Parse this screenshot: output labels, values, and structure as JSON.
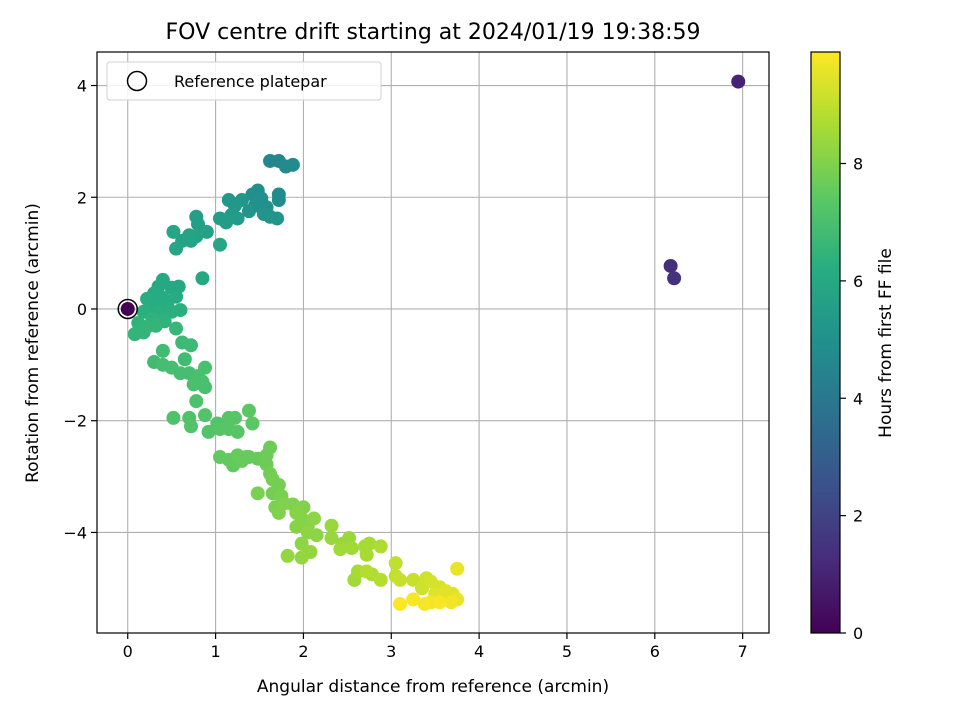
{
  "chart_data": {
    "type": "scatter",
    "title": "FOV centre drift starting at 2024/01/19 19:38:59",
    "xlabel": "Angular distance from reference (arcmin)",
    "ylabel": "Rotation from reference (arcmin)",
    "xlim": [
      -0.35,
      7.3
    ],
    "ylim": [
      -5.8,
      4.6
    ],
    "xticks": [
      0,
      1,
      2,
      3,
      4,
      5,
      6,
      7
    ],
    "yticks": [
      -4,
      -2,
      0,
      2,
      4
    ],
    "xtick_labels": [
      "0",
      "1",
      "2",
      "3",
      "4",
      "5",
      "6",
      "7"
    ],
    "ytick_labels": [
      "−4",
      "−2",
      "0",
      "2",
      "4"
    ],
    "grid": true,
    "legend": {
      "placement": "upper-left",
      "entries": [
        "Reference platepar"
      ]
    },
    "reference_point": {
      "x": 0,
      "y": 0
    },
    "colorbar": {
      "label": "Hours from first FF file",
      "colormap": "viridis",
      "range": [
        0,
        9.9
      ],
      "ticks": [
        0,
        2,
        4,
        6,
        8
      ],
      "tick_labels": [
        "0",
        "2",
        "4",
        "6",
        "8"
      ]
    },
    "points": [
      {
        "x": 6.95,
        "y": 4.07,
        "h": 1.0
      },
      {
        "x": 6.18,
        "y": 0.77,
        "h": 1.3
      },
      {
        "x": 6.22,
        "y": 0.55,
        "h": 1.4
      },
      {
        "x": 1.62,
        "y": 2.65,
        "h": 4.6
      },
      {
        "x": 1.72,
        "y": 2.65,
        "h": 4.6
      },
      {
        "x": 1.8,
        "y": 2.55,
        "h": 4.7
      },
      {
        "x": 1.88,
        "y": 2.58,
        "h": 4.7
      },
      {
        "x": 1.72,
        "y": 2.05,
        "h": 4.8
      },
      {
        "x": 1.72,
        "y": 1.95,
        "h": 4.8
      },
      {
        "x": 1.48,
        "y": 2.12,
        "h": 4.9
      },
      {
        "x": 1.42,
        "y": 2.05,
        "h": 4.9
      },
      {
        "x": 1.52,
        "y": 1.98,
        "h": 5.0
      },
      {
        "x": 1.45,
        "y": 1.85,
        "h": 5.0
      },
      {
        "x": 1.58,
        "y": 1.82,
        "h": 5.0
      },
      {
        "x": 1.38,
        "y": 1.75,
        "h": 5.1
      },
      {
        "x": 1.55,
        "y": 1.7,
        "h": 5.1
      },
      {
        "x": 1.62,
        "y": 1.65,
        "h": 5.1
      },
      {
        "x": 1.7,
        "y": 1.62,
        "h": 5.2
      },
      {
        "x": 1.5,
        "y": 1.92,
        "h": 5.0
      },
      {
        "x": 1.3,
        "y": 1.95,
        "h": 5.2
      },
      {
        "x": 1.22,
        "y": 1.85,
        "h": 5.3
      },
      {
        "x": 1.15,
        "y": 1.95,
        "h": 5.3
      },
      {
        "x": 1.18,
        "y": 1.68,
        "h": 5.4
      },
      {
        "x": 1.25,
        "y": 1.62,
        "h": 5.4
      },
      {
        "x": 1.05,
        "y": 1.62,
        "h": 5.5
      },
      {
        "x": 1.12,
        "y": 1.55,
        "h": 5.5
      },
      {
        "x": 0.78,
        "y": 1.65,
        "h": 5.6
      },
      {
        "x": 0.8,
        "y": 1.52,
        "h": 5.6
      },
      {
        "x": 0.9,
        "y": 1.38,
        "h": 5.7
      },
      {
        "x": 0.78,
        "y": 1.3,
        "h": 5.7
      },
      {
        "x": 0.7,
        "y": 1.32,
        "h": 5.8
      },
      {
        "x": 0.72,
        "y": 1.22,
        "h": 5.8
      },
      {
        "x": 0.62,
        "y": 1.22,
        "h": 5.8
      },
      {
        "x": 0.52,
        "y": 1.38,
        "h": 5.9
      },
      {
        "x": 0.55,
        "y": 1.08,
        "h": 5.9
      },
      {
        "x": 1.05,
        "y": 1.15,
        "h": 5.9
      },
      {
        "x": 0.4,
        "y": 0.52,
        "h": 6.0
      },
      {
        "x": 0.35,
        "y": 0.4,
        "h": 6.0
      },
      {
        "x": 0.5,
        "y": 0.38,
        "h": 6.0
      },
      {
        "x": 0.58,
        "y": 0.4,
        "h": 6.0
      },
      {
        "x": 0.3,
        "y": 0.28,
        "h": 6.1
      },
      {
        "x": 0.4,
        "y": 0.2,
        "h": 6.1
      },
      {
        "x": 0.55,
        "y": 0.22,
        "h": 6.1
      },
      {
        "x": 0.45,
        "y": 0.08,
        "h": 6.2
      },
      {
        "x": 0.3,
        "y": 0.05,
        "h": 6.2
      },
      {
        "x": 0.22,
        "y": 0.18,
        "h": 6.2
      },
      {
        "x": 0.18,
        "y": -0.05,
        "h": 6.3
      },
      {
        "x": 0.35,
        "y": -0.05,
        "h": 6.3
      },
      {
        "x": 0.5,
        "y": -0.05,
        "h": 6.3
      },
      {
        "x": 0.6,
        "y": -0.02,
        "h": 6.3
      },
      {
        "x": 0.28,
        "y": -0.18,
        "h": 6.4
      },
      {
        "x": 0.42,
        "y": -0.22,
        "h": 6.4
      },
      {
        "x": 0.12,
        "y": -0.25,
        "h": 6.4
      },
      {
        "x": 0.22,
        "y": -0.32,
        "h": 6.5
      },
      {
        "x": 0.32,
        "y": -0.3,
        "h": 6.5
      },
      {
        "x": 0.08,
        "y": -0.45,
        "h": 6.5
      },
      {
        "x": 0.18,
        "y": -0.42,
        "h": 6.5
      },
      {
        "x": 0.55,
        "y": -0.35,
        "h": 6.6
      },
      {
        "x": 0.85,
        "y": 0.55,
        "h": 6.0
      },
      {
        "x": 0.62,
        "y": -0.6,
        "h": 6.7
      },
      {
        "x": 0.72,
        "y": -0.65,
        "h": 6.7
      },
      {
        "x": 0.4,
        "y": -0.75,
        "h": 6.8
      },
      {
        "x": 0.65,
        "y": -0.9,
        "h": 6.8
      },
      {
        "x": 0.3,
        "y": -0.95,
        "h": 6.8
      },
      {
        "x": 0.4,
        "y": -1.0,
        "h": 6.9
      },
      {
        "x": 0.5,
        "y": -1.05,
        "h": 6.9
      },
      {
        "x": 0.6,
        "y": -1.15,
        "h": 6.9
      },
      {
        "x": 0.7,
        "y": -1.15,
        "h": 6.9
      },
      {
        "x": 0.8,
        "y": -1.2,
        "h": 7.0
      },
      {
        "x": 0.88,
        "y": -1.05,
        "h": 7.0
      },
      {
        "x": 0.85,
        "y": -1.3,
        "h": 7.0
      },
      {
        "x": 0.75,
        "y": -1.35,
        "h": 7.0
      },
      {
        "x": 0.88,
        "y": -1.4,
        "h": 7.0
      },
      {
        "x": 0.78,
        "y": -1.65,
        "h": 7.1
      },
      {
        "x": 0.52,
        "y": -1.95,
        "h": 7.1
      },
      {
        "x": 0.7,
        "y": -1.95,
        "h": 7.1
      },
      {
        "x": 0.72,
        "y": -2.1,
        "h": 7.2
      },
      {
        "x": 0.88,
        "y": -1.9,
        "h": 7.2
      },
      {
        "x": 0.92,
        "y": -2.2,
        "h": 7.2
      },
      {
        "x": 1.02,
        "y": -2.05,
        "h": 7.2
      },
      {
        "x": 1.05,
        "y": -2.15,
        "h": 7.3
      },
      {
        "x": 1.15,
        "y": -1.95,
        "h": 7.3
      },
      {
        "x": 1.22,
        "y": -1.95,
        "h": 7.3
      },
      {
        "x": 1.15,
        "y": -2.15,
        "h": 7.3
      },
      {
        "x": 1.25,
        "y": -2.2,
        "h": 7.3
      },
      {
        "x": 1.38,
        "y": -1.82,
        "h": 7.4
      },
      {
        "x": 1.42,
        "y": -2.05,
        "h": 7.4
      },
      {
        "x": 1.05,
        "y": -2.65,
        "h": 7.5
      },
      {
        "x": 1.15,
        "y": -2.7,
        "h": 7.5
      },
      {
        "x": 1.2,
        "y": -2.8,
        "h": 7.5
      },
      {
        "x": 1.25,
        "y": -2.62,
        "h": 7.6
      },
      {
        "x": 1.3,
        "y": -2.72,
        "h": 7.6
      },
      {
        "x": 1.38,
        "y": -2.65,
        "h": 7.6
      },
      {
        "x": 1.48,
        "y": -2.68,
        "h": 7.6
      },
      {
        "x": 1.58,
        "y": -2.62,
        "h": 7.7
      },
      {
        "x": 1.62,
        "y": -2.48,
        "h": 7.7
      },
      {
        "x": 1.58,
        "y": -2.78,
        "h": 7.7
      },
      {
        "x": 1.35,
        "y": -2.65,
        "h": 7.6
      },
      {
        "x": 1.62,
        "y": -2.95,
        "h": 7.8
      },
      {
        "x": 1.65,
        "y": -3.05,
        "h": 7.8
      },
      {
        "x": 1.72,
        "y": -3.15,
        "h": 7.8
      },
      {
        "x": 1.65,
        "y": -3.3,
        "h": 7.8
      },
      {
        "x": 1.75,
        "y": -3.35,
        "h": 7.9
      },
      {
        "x": 1.48,
        "y": -3.3,
        "h": 7.9
      },
      {
        "x": 1.68,
        "y": -3.55,
        "h": 7.9
      },
      {
        "x": 1.72,
        "y": -3.65,
        "h": 8.0
      },
      {
        "x": 1.78,
        "y": -3.48,
        "h": 8.0
      },
      {
        "x": 1.88,
        "y": -3.5,
        "h": 8.0
      },
      {
        "x": 2.0,
        "y": -3.55,
        "h": 8.0
      },
      {
        "x": 1.92,
        "y": -3.65,
        "h": 8.1
      },
      {
        "x": 1.98,
        "y": -3.75,
        "h": 8.1
      },
      {
        "x": 1.92,
        "y": -3.9,
        "h": 8.1
      },
      {
        "x": 2.05,
        "y": -3.88,
        "h": 8.1
      },
      {
        "x": 2.12,
        "y": -3.75,
        "h": 8.2
      },
      {
        "x": 2.05,
        "y": -4.0,
        "h": 8.2
      },
      {
        "x": 2.15,
        "y": -4.05,
        "h": 8.2
      },
      {
        "x": 1.98,
        "y": -4.2,
        "h": 8.2
      },
      {
        "x": 2.08,
        "y": -4.35,
        "h": 8.3
      },
      {
        "x": 1.98,
        "y": -4.45,
        "h": 8.3
      },
      {
        "x": 1.82,
        "y": -4.42,
        "h": 8.3
      },
      {
        "x": 2.32,
        "y": -3.88,
        "h": 8.4
      },
      {
        "x": 2.32,
        "y": -4.1,
        "h": 8.4
      },
      {
        "x": 2.45,
        "y": -4.2,
        "h": 8.4
      },
      {
        "x": 2.52,
        "y": -4.1,
        "h": 8.4
      },
      {
        "x": 2.55,
        "y": -4.28,
        "h": 8.5
      },
      {
        "x": 2.42,
        "y": -4.3,
        "h": 8.5
      },
      {
        "x": 2.58,
        "y": -4.85,
        "h": 8.5
      },
      {
        "x": 2.62,
        "y": -4.7,
        "h": 8.6
      },
      {
        "x": 2.7,
        "y": -4.25,
        "h": 8.6
      },
      {
        "x": 2.72,
        "y": -4.4,
        "h": 8.6
      },
      {
        "x": 2.75,
        "y": -4.2,
        "h": 8.6
      },
      {
        "x": 2.88,
        "y": -4.25,
        "h": 8.7
      },
      {
        "x": 2.78,
        "y": -4.75,
        "h": 8.7
      },
      {
        "x": 2.88,
        "y": -4.85,
        "h": 8.8
      },
      {
        "x": 2.72,
        "y": -4.7,
        "h": 8.8
      },
      {
        "x": 3.05,
        "y": -4.55,
        "h": 9.0
      },
      {
        "x": 3.05,
        "y": -4.78,
        "h": 9.0
      },
      {
        "x": 3.1,
        "y": -4.85,
        "h": 9.1
      },
      {
        "x": 3.25,
        "y": -4.85,
        "h": 9.1
      },
      {
        "x": 3.35,
        "y": -5.0,
        "h": 9.2
      },
      {
        "x": 3.4,
        "y": -4.82,
        "h": 9.2
      },
      {
        "x": 3.45,
        "y": -4.88,
        "h": 9.3
      },
      {
        "x": 3.55,
        "y": -4.98,
        "h": 9.3
      },
      {
        "x": 3.5,
        "y": -5.1,
        "h": 9.4
      },
      {
        "x": 3.58,
        "y": -5.15,
        "h": 9.4
      },
      {
        "x": 3.62,
        "y": -5.05,
        "h": 9.5
      },
      {
        "x": 3.7,
        "y": -5.1,
        "h": 9.5
      },
      {
        "x": 3.75,
        "y": -4.65,
        "h": 9.6
      },
      {
        "x": 3.75,
        "y": -5.2,
        "h": 9.6
      },
      {
        "x": 3.68,
        "y": -5.25,
        "h": 9.7
      },
      {
        "x": 3.45,
        "y": -5.25,
        "h": 9.7
      },
      {
        "x": 3.38,
        "y": -5.28,
        "h": 9.8
      },
      {
        "x": 3.25,
        "y": -5.2,
        "h": 9.8
      },
      {
        "x": 3.1,
        "y": -5.28,
        "h": 9.9
      },
      {
        "x": 3.55,
        "y": -5.25,
        "h": 9.8
      }
    ]
  }
}
